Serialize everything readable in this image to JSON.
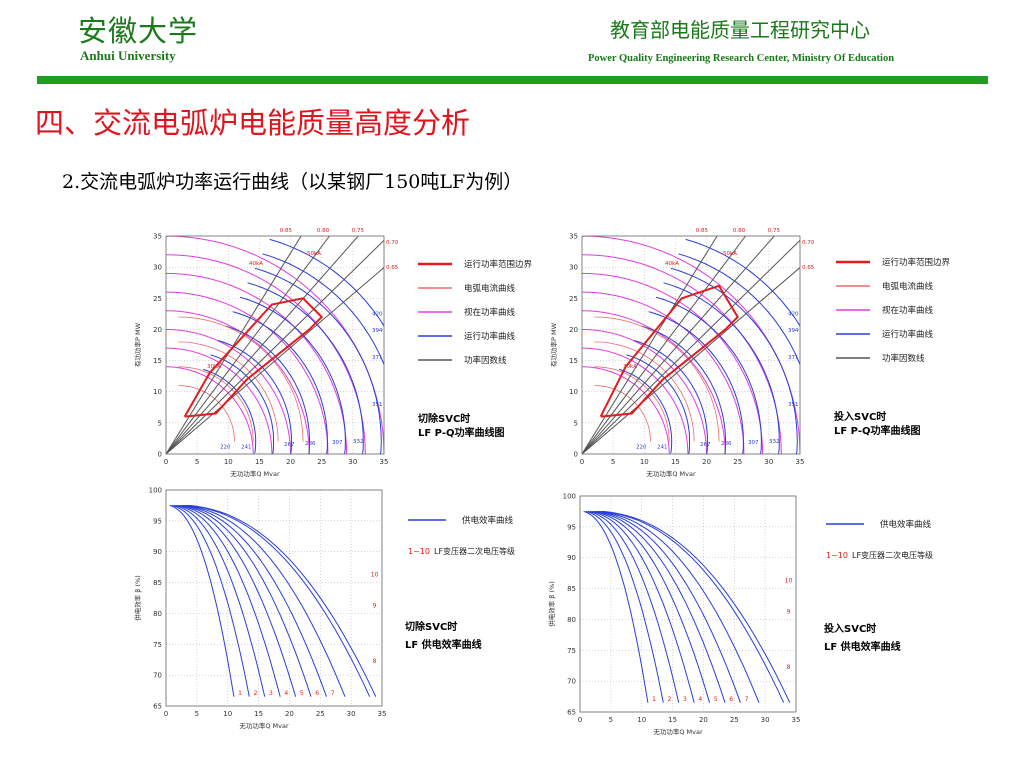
{
  "header": {
    "university_cn": "安徽大学",
    "university_en": "Anhui University",
    "center_cn": "教育部电能质量工程研究中心",
    "center_en": "Power Quality Engineering Research Center, Ministry Of Education"
  },
  "section_title": "四、交流电弧炉电能质量高度分析",
  "subtitle": "2.交流电弧炉功率运行曲线（以某钢厂150吨LF为例）",
  "colors": {
    "green": "#1e9e1e",
    "title_red": "#e0141e",
    "boundary": "#e41a1c",
    "arc": "#ef6a6a",
    "reactance": "#e23be2",
    "op": "#2a3ed8",
    "pf": "#555555"
  },
  "pq_legend": [
    {
      "label": "运行功率范围边界",
      "color": "#e41a1c"
    },
    {
      "label": "电弧电流曲线",
      "color": "#ef6a6a"
    },
    {
      "label": "视在功率曲线",
      "color": "#e23be2"
    },
    {
      "label": "运行功率曲线",
      "color": "#2a3ed8"
    },
    {
      "label": "功率因数线",
      "color": "#555555"
    }
  ],
  "eff_legend": [
    {
      "label": "供电效率曲线",
      "color": "#2a3ed8"
    },
    {
      "label": "1~10 LF变压器二次电压等级",
      "color": "#e41a1c"
    }
  ],
  "charts": {
    "pq_off": {
      "caption_line1": "切除SVC时",
      "caption_line2": "LF P-Q功率曲线图"
    },
    "pq_on": {
      "caption_line1": "投入SVC时",
      "caption_line2": "LF P-Q功率曲线图"
    },
    "eff_off": {
      "caption_line1": "切除SVC时",
      "caption_line2": "LF 供电效率曲线"
    },
    "eff_on": {
      "caption_line1": "投入SVC时",
      "caption_line2": "LF 供电效率曲线"
    }
  },
  "chart_data": [
    {
      "type": "line",
      "id": "pq_off",
      "title": "",
      "xlabel": "无功功率Q  Mvar",
      "ylabel": "有功功率P  MW",
      "xlim": [
        0,
        35
      ],
      "ylim": [
        0,
        35
      ],
      "xticks": [
        0,
        5,
        10,
        15,
        20,
        25,
        30,
        35
      ],
      "yticks": [
        0,
        5,
        10,
        15,
        20,
        25,
        30,
        35
      ],
      "pf_labels": [
        "0.85",
        "0.80",
        "0.75",
        "0.70",
        "0.65"
      ],
      "op_labels": [
        "220",
        "241",
        "267",
        "286",
        "307",
        "332",
        "351",
        "371",
        "394",
        "420"
      ],
      "arc_labels": [
        "30kA",
        "40kA",
        "50kA"
      ],
      "boundary": [
        [
          3,
          6
        ],
        [
          8,
          6.5
        ],
        [
          13,
          12
        ],
        [
          23,
          20
        ],
        [
          25,
          22
        ],
        [
          22,
          25
        ],
        [
          17,
          24
        ],
        [
          7,
          13
        ],
        [
          3,
          6
        ]
      ]
    },
    {
      "type": "line",
      "id": "pq_on",
      "title": "",
      "xlabel": "无功功率Q  Mvar",
      "ylabel": "有功功率P  MW",
      "xlim": [
        0,
        35
      ],
      "ylim": [
        0,
        35
      ],
      "xticks": [
        0,
        5,
        10,
        15,
        20,
        25,
        30,
        35
      ],
      "yticks": [
        0,
        5,
        10,
        15,
        20,
        25,
        30,
        35
      ],
      "pf_labels": [
        "0.85",
        "0.80",
        "0.75",
        "0.70",
        "0.65"
      ],
      "op_labels": [
        "220",
        "241",
        "267",
        "286",
        "307",
        "332",
        "351",
        "371",
        "394",
        "420"
      ],
      "arc_labels": [
        "30kA",
        "40kA",
        "50kA"
      ],
      "boundary": [
        [
          3,
          6
        ],
        [
          8,
          6.5
        ],
        [
          13,
          12
        ],
        [
          23,
          20
        ],
        [
          25,
          22
        ],
        [
          22,
          27
        ],
        [
          16,
          25
        ],
        [
          7,
          14
        ],
        [
          3,
          6
        ]
      ]
    },
    {
      "type": "line",
      "id": "eff_off",
      "title": "",
      "xlabel": "无功功率Q  Mvar",
      "ylabel": "供电效率 β (%)",
      "xlim": [
        0,
        35
      ],
      "ylim": [
        65,
        100
      ],
      "xticks": [
        0,
        5,
        10,
        15,
        20,
        25,
        30,
        35
      ],
      "yticks": [
        65,
        70,
        75,
        80,
        85,
        90,
        95,
        100
      ],
      "level_labels": [
        "1",
        "2",
        "3",
        "4",
        "5",
        "6",
        "7",
        "8",
        "9",
        "10"
      ],
      "curve_end_x": [
        11,
        13.5,
        16,
        18.5,
        21,
        23.5,
        26,
        29,
        33,
        34
      ]
    },
    {
      "type": "line",
      "id": "eff_on",
      "title": "",
      "xlabel": "无功功率Q  Mvar",
      "ylabel": "供电效率 β (%)",
      "xlim": [
        0,
        35
      ],
      "ylim": [
        65,
        100
      ],
      "xticks": [
        0,
        5,
        10,
        15,
        20,
        25,
        30,
        35
      ],
      "yticks": [
        65,
        70,
        75,
        80,
        85,
        90,
        95,
        100
      ],
      "level_labels": [
        "1",
        "2",
        "3",
        "4",
        "5",
        "6",
        "7",
        "8",
        "9",
        "10"
      ],
      "curve_end_x": [
        11,
        13.5,
        16,
        18.5,
        21,
        23.5,
        26,
        29,
        33,
        34
      ]
    }
  ]
}
